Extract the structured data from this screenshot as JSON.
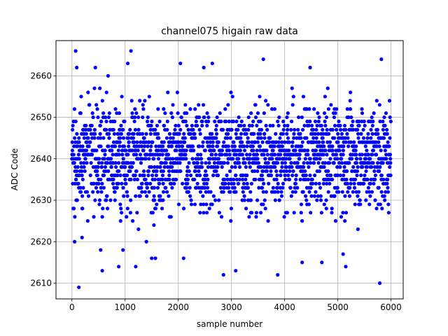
{
  "chart_data": {
    "type": "scatter",
    "title": "channel075 higain raw data",
    "xlabel": "sample number",
    "ylabel": "ADC Code",
    "xlim": [
      -300,
      6230
    ],
    "ylim": [
      2606.2,
      2668.5
    ],
    "xticks": [
      0,
      1000,
      2000,
      3000,
      4000,
      5000,
      6000
    ],
    "yticks": [
      2610,
      2620,
      2630,
      2640,
      2650,
      2660
    ],
    "grid": true,
    "series": [
      {
        "color": "#0000ff",
        "marker": "circle",
        "n_samples": 6000,
        "core_range": [
          2622,
          2659
        ],
        "notable_points": [
          {
            "x": 70,
            "y": 2666
          },
          {
            "x": 130,
            "y": 2609
          },
          {
            "x": 90,
            "y": 2662
          },
          {
            "x": 50,
            "y": 2620
          },
          {
            "x": 190,
            "y": 2621
          },
          {
            "x": 570,
            "y": 2613
          },
          {
            "x": 540,
            "y": 2618
          },
          {
            "x": 440,
            "y": 2662
          },
          {
            "x": 680,
            "y": 2660
          },
          {
            "x": 880,
            "y": 2614
          },
          {
            "x": 960,
            "y": 2618
          },
          {
            "x": 1050,
            "y": 2663
          },
          {
            "x": 1110,
            "y": 2666
          },
          {
            "x": 1200,
            "y": 2614
          },
          {
            "x": 1400,
            "y": 2620
          },
          {
            "x": 1500,
            "y": 2616
          },
          {
            "x": 1570,
            "y": 2616
          },
          {
            "x": 2040,
            "y": 2663
          },
          {
            "x": 2100,
            "y": 2616
          },
          {
            "x": 2480,
            "y": 2662
          },
          {
            "x": 2640,
            "y": 2663
          },
          {
            "x": 2850,
            "y": 2612
          },
          {
            "x": 3080,
            "y": 2613
          },
          {
            "x": 3600,
            "y": 2664
          },
          {
            "x": 3870,
            "y": 2612
          },
          {
            "x": 4330,
            "y": 2615
          },
          {
            "x": 4480,
            "y": 2662
          },
          {
            "x": 4700,
            "y": 2615
          },
          {
            "x": 5100,
            "y": 2617
          },
          {
            "x": 5150,
            "y": 2614
          },
          {
            "x": 5790,
            "y": 2610
          },
          {
            "x": 5820,
            "y": 2664
          }
        ]
      }
    ]
  }
}
